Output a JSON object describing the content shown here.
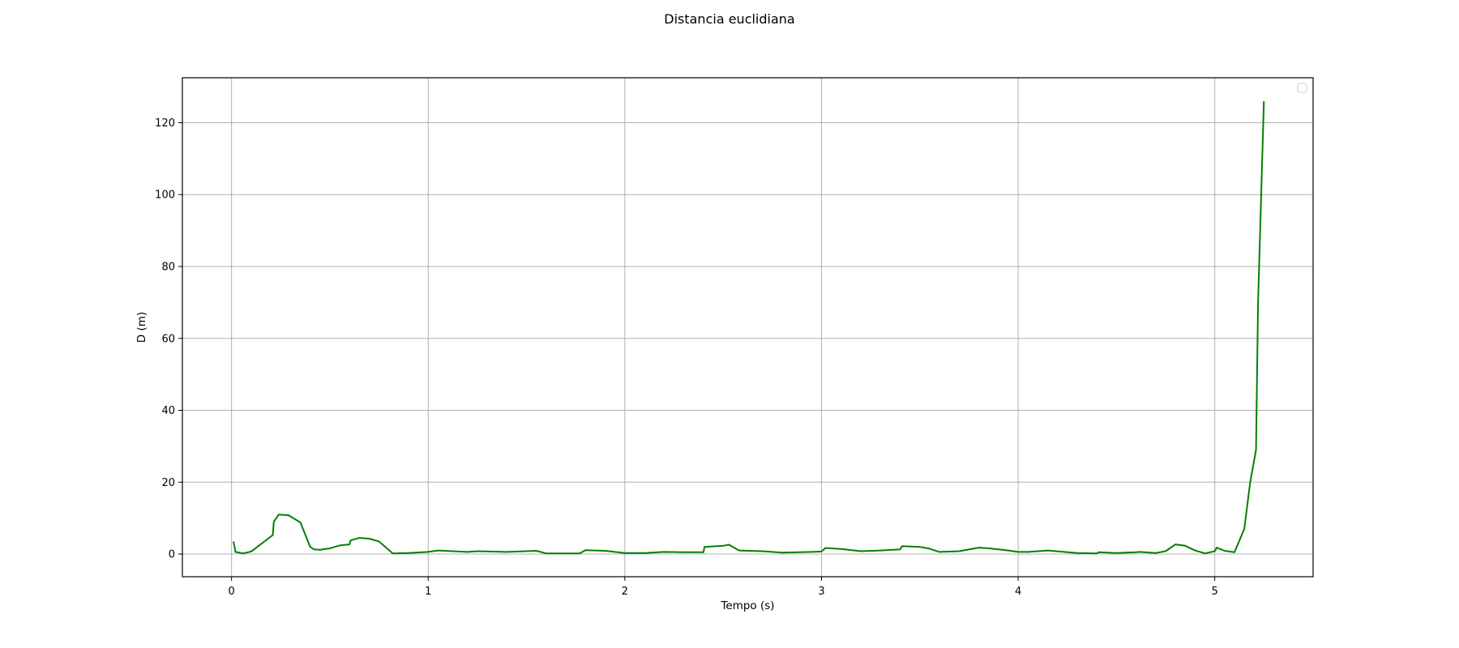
{
  "chart_data": {
    "type": "line",
    "title": "Distancia euclidiana",
    "xlabel": "Tempo (s)",
    "ylabel": "D (m)",
    "xlim": [
      -0.25,
      5.5
    ],
    "ylim": [
      -6.3,
      132.5
    ],
    "xticks": [
      0,
      1,
      2,
      3,
      4,
      5
    ],
    "yticks": [
      0,
      20,
      40,
      60,
      80,
      100,
      120
    ],
    "grid": true,
    "legend": "top-right (empty)",
    "series": [
      {
        "color": "#008000",
        "x": [
          0.01,
          0.02,
          0.06,
          0.1,
          0.21,
          0.215,
          0.24,
          0.29,
          0.35,
          0.4,
          0.42,
          0.45,
          0.5,
          0.55,
          0.6,
          0.605,
          0.65,
          0.7,
          0.75,
          0.82,
          0.9,
          1.0,
          1.05,
          1.2,
          1.25,
          1.4,
          1.55,
          1.6,
          1.77,
          1.8,
          1.9,
          2.0,
          2.1,
          2.2,
          2.3,
          2.4,
          2.405,
          2.5,
          2.53,
          2.58,
          2.7,
          2.8,
          2.95,
          3.0,
          3.02,
          3.1,
          3.2,
          3.3,
          3.4,
          3.41,
          3.5,
          3.55,
          3.6,
          3.7,
          3.8,
          3.85,
          3.95,
          4.0,
          4.05,
          4.15,
          4.3,
          4.4,
          4.41,
          4.5,
          4.6,
          4.62,
          4.7,
          4.75,
          4.8,
          4.85,
          4.9,
          4.95,
          5.0,
          5.01,
          5.05,
          5.1,
          5.15,
          5.18,
          5.21,
          5.22,
          5.25
        ],
        "values": [
          3.5,
          0.6,
          0.2,
          0.7,
          5.3,
          9.0,
          11.0,
          10.8,
          8.8,
          2.0,
          1.3,
          1.2,
          1.6,
          2.4,
          2.7,
          3.8,
          4.5,
          4.3,
          3.5,
          0.2,
          0.3,
          0.6,
          1.0,
          0.6,
          0.8,
          0.6,
          0.9,
          0.2,
          0.2,
          1.1,
          0.9,
          0.3,
          0.3,
          0.6,
          0.5,
          0.5,
          2.0,
          2.3,
          2.6,
          1.0,
          0.8,
          0.4,
          0.6,
          0.7,
          1.7,
          1.4,
          0.8,
          1.0,
          1.3,
          2.2,
          2.0,
          1.5,
          0.6,
          0.8,
          1.8,
          1.6,
          1.0,
          0.6,
          0.6,
          1.0,
          0.3,
          0.2,
          0.5,
          0.3,
          0.5,
          0.6,
          0.3,
          0.8,
          2.7,
          2.3,
          1.0,
          0.2,
          0.8,
          1.8,
          0.9,
          0.5,
          7.0,
          20.0,
          29.0,
          70.0,
          126.0
        ]
      }
    ]
  }
}
